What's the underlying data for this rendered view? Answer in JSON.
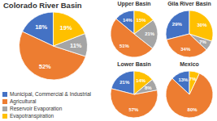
{
  "chart_data": [
    {
      "type": "pie",
      "title": "Colorado River Basin",
      "categories": [
        "Municipal, Commercial & Industrial",
        "Agricultural",
        "Reservoir Evaporation",
        "Evapotranspiration"
      ],
      "values": [
        18,
        52,
        11,
        19
      ],
      "value_labels": [
        "18%",
        "52%",
        "11%",
        "19%"
      ],
      "colors": [
        "#4472C4",
        "#ED7D31",
        "#A5A5A5",
        "#FFC000"
      ],
      "data_labels": true,
      "legend": "lower left"
    },
    {
      "type": "pie",
      "title": "Upper Basin",
      "categories": [
        "Municipal, Commercial & Industrial",
        "Agricultural",
        "Reservoir Evaporation",
        "Evapotranspiration"
      ],
      "values": [
        14,
        51,
        21,
        15
      ],
      "value_labels": [
        "14%",
        "51%",
        "21%",
        "15%"
      ],
      "colors": [
        "#4472C4",
        "#ED7D31",
        "#A5A5A5",
        "#FFC000"
      ],
      "data_labels": true
    },
    {
      "type": "pie",
      "title": "Gila River Basin",
      "categories": [
        "Municipal, Commercial & Industrial",
        "Agricultural",
        "Reservoir Evaporation",
        "Evapotranspiration"
      ],
      "values": [
        29,
        34,
        7,
        30
      ],
      "value_labels": [
        "29%",
        "34%",
        "7%",
        "30%"
      ],
      "colors": [
        "#4472C4",
        "#ED7D31",
        "#A5A5A5",
        "#FFC000"
      ],
      "data_labels": true
    },
    {
      "type": "pie",
      "title": "Lower Basin",
      "categories": [
        "Municipal, Commercial & Industrial",
        "Agricultural",
        "Reservoir Evaporation",
        "Evapotranspiration"
      ],
      "values": [
        21,
        57,
        8,
        14
      ],
      "value_labels": [
        "21%",
        "57%",
        "8%",
        "14%"
      ],
      "colors": [
        "#4472C4",
        "#ED7D31",
        "#A5A5A5",
        "#FFC000"
      ],
      "data_labels": true
    },
    {
      "type": "pie",
      "title": "Mexico",
      "categories": [
        "Municipal, Commercial & Industrial",
        "Agricultural",
        "Evapotranspiration"
      ],
      "values": [
        13,
        80,
        7
      ],
      "value_labels": [
        "13%",
        "80%",
        "7%"
      ],
      "colors": [
        "#4472C4",
        "#ED7D31",
        "#FFC000"
      ],
      "data_labels": true
    }
  ]
}
